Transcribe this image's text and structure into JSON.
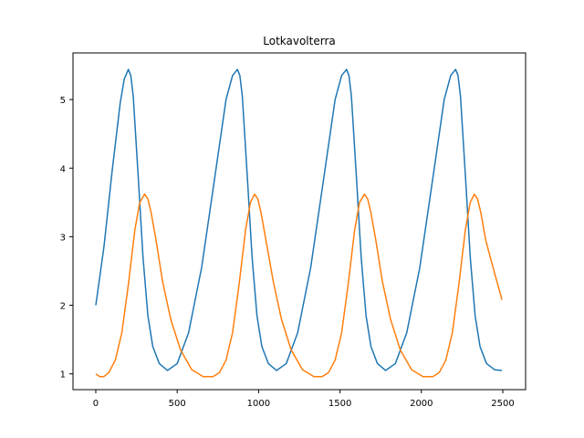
{
  "chart_data": {
    "type": "line",
    "title": "Lotkavolterra",
    "xlabel": "",
    "ylabel": "",
    "xlim": [
      -140,
      2640
    ],
    "ylim": [
      0.77,
      5.68
    ],
    "xticks": [
      0,
      500,
      1000,
      1500,
      2000,
      2500
    ],
    "xtick_labels": [
      "0",
      "500",
      "1000",
      "1500",
      "2000",
      "2500"
    ],
    "yticks": [
      1,
      2,
      3,
      4,
      5
    ],
    "ytick_labels": [
      "1",
      "2",
      "3",
      "4",
      "5"
    ],
    "grid": false,
    "legend": "none",
    "series": [
      {
        "color": "#1f77b4",
        "x": [
          0,
          50,
          100,
          150,
          175,
          200,
          215,
          230,
          260,
          290,
          320,
          350,
          390,
          440,
          500,
          570,
          650,
          730,
          800,
          840,
          870,
          885,
          900,
          930,
          960,
          990,
          1020,
          1060,
          1110,
          1170,
          1240,
          1320,
          1400,
          1470,
          1510,
          1540,
          1555,
          1570,
          1600,
          1630,
          1660,
          1690,
          1730,
          1780,
          1840,
          1910,
          1990,
          2070,
          2140,
          2180,
          2210,
          2225,
          2240,
          2270,
          2300,
          2330,
          2360,
          2400,
          2450,
          2495
        ],
        "y": [
          2.0,
          2.85,
          3.95,
          4.95,
          5.3,
          5.44,
          5.35,
          5.05,
          3.9,
          2.7,
          1.85,
          1.4,
          1.15,
          1.05,
          1.15,
          1.6,
          2.55,
          3.85,
          5.0,
          5.35,
          5.44,
          5.35,
          5.05,
          3.9,
          2.7,
          1.85,
          1.4,
          1.15,
          1.05,
          1.15,
          1.6,
          2.55,
          3.85,
          5.0,
          5.35,
          5.44,
          5.35,
          5.05,
          3.9,
          2.7,
          1.85,
          1.4,
          1.15,
          1.05,
          1.15,
          1.6,
          2.55,
          3.85,
          5.0,
          5.35,
          5.44,
          5.35,
          5.05,
          3.9,
          2.7,
          1.85,
          1.4,
          1.15,
          1.06,
          1.05
        ]
      },
      {
        "color": "#ff7f0e",
        "x": [
          0,
          25,
          50,
          80,
          120,
          160,
          200,
          240,
          270,
          300,
          320,
          340,
          370,
          410,
          460,
          520,
          590,
          660,
          720,
          760,
          800,
          840,
          880,
          920,
          950,
          975,
          995,
          1015,
          1045,
          1090,
          1140,
          1200,
          1270,
          1340,
          1390,
          1430,
          1470,
          1510,
          1550,
          1590,
          1620,
          1650,
          1670,
          1690,
          1720,
          1760,
          1810,
          1870,
          1940,
          2010,
          2070,
          2110,
          2150,
          2190,
          2230,
          2270,
          2300,
          2325,
          2345,
          2365,
          2395,
          2440,
          2495
        ],
        "y": [
          1.0,
          0.96,
          0.96,
          1.02,
          1.2,
          1.6,
          2.3,
          3.1,
          3.5,
          3.62,
          3.55,
          3.35,
          2.95,
          2.35,
          1.8,
          1.35,
          1.06,
          0.96,
          0.96,
          1.02,
          1.2,
          1.6,
          2.3,
          3.1,
          3.5,
          3.62,
          3.55,
          3.35,
          2.95,
          2.35,
          1.8,
          1.35,
          1.06,
          0.96,
          0.96,
          1.02,
          1.2,
          1.6,
          2.3,
          3.1,
          3.5,
          3.62,
          3.55,
          3.35,
          2.95,
          2.35,
          1.8,
          1.35,
          1.06,
          0.96,
          0.96,
          1.02,
          1.2,
          1.6,
          2.3,
          3.1,
          3.5,
          3.62,
          3.55,
          3.35,
          2.95,
          2.55,
          2.08
        ]
      }
    ]
  }
}
